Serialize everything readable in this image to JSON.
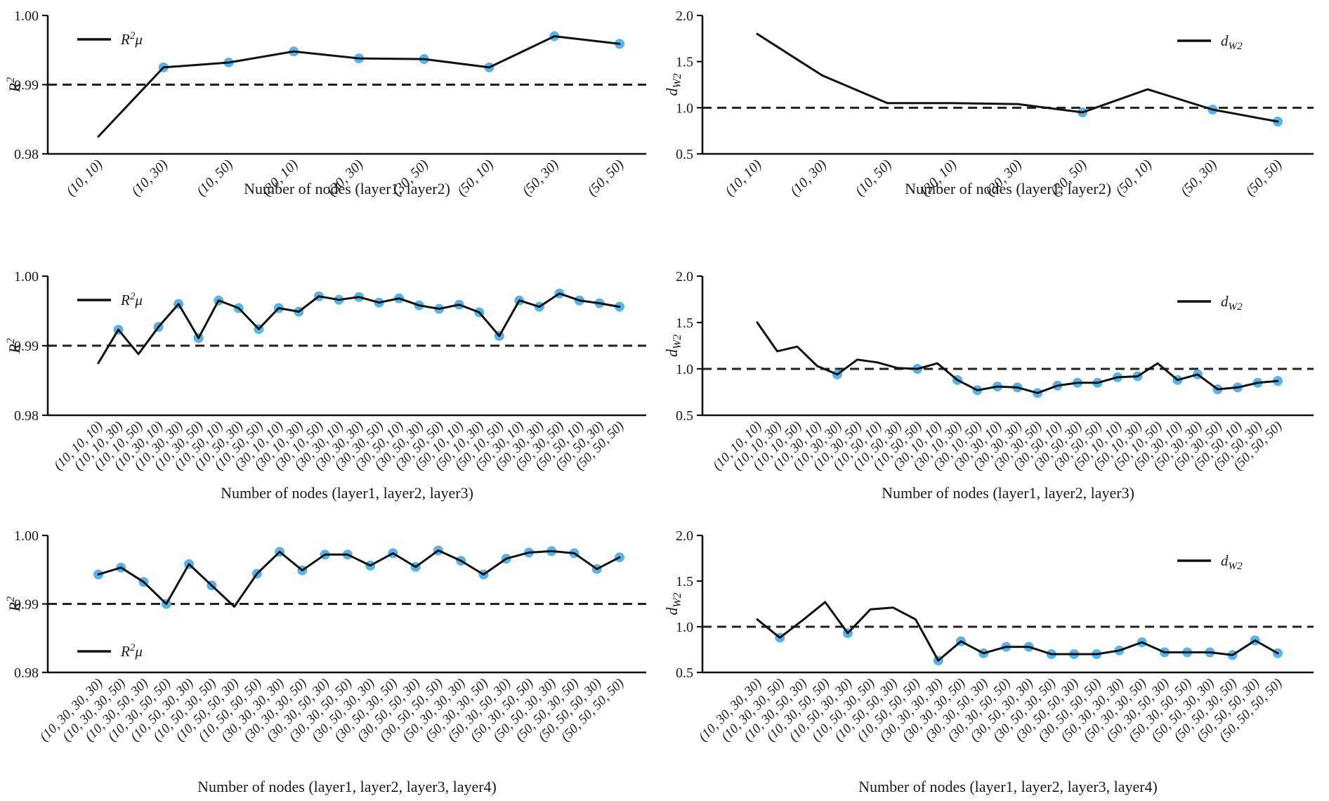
{
  "figure": {
    "background": "#ffffff",
    "line_color": "#111111",
    "dashed_color": "#222222",
    "marker_color": "#56B4E9",
    "text_color": "#1a1a1a"
  },
  "chart_data": [
    {
      "id": "r2-layers2",
      "type": "line",
      "xlabel": "Number of nodes (layer1, layer2)",
      "ylabel_parts": [
        {
          "text": "R",
          "italic": true
        },
        {
          "text": "2",
          "script": "sup",
          "italic": true
        }
      ],
      "legend": {
        "position": "upper-left",
        "label": "R²μ",
        "label_parts": [
          {
            "text": "R",
            "italic": true
          },
          {
            "text": "2",
            "script": "sup",
            "italic": true
          },
          {
            "text": "μ",
            "italic": true
          }
        ]
      },
      "ylim": [
        0.98,
        1.0
      ],
      "y_ticks": [
        {
          "value": 1.0,
          "label": "1.00"
        },
        {
          "value": 0.99,
          "label": "0.99"
        },
        {
          "value": 0.98,
          "label": "0.98"
        }
      ],
      "dashed_y": 0.99,
      "categories": [
        "(10, 10)",
        "(10, 30)",
        "(10, 50)",
        "(30, 10)",
        "(30, 30)",
        "(30, 50)",
        "(50, 10)",
        "(50, 30)",
        "(50, 50)"
      ],
      "values": [
        0.9825,
        0.9925,
        0.9932,
        0.9948,
        0.9938,
        0.9937,
        0.9925,
        0.997,
        0.9959
      ],
      "markers": [
        false,
        true,
        true,
        true,
        true,
        true,
        true,
        true,
        true
      ]
    },
    {
      "id": "dw2-layers2",
      "type": "line",
      "xlabel": "Number of nodes (layer1, layer2)",
      "ylabel_parts": [
        {
          "text": "d",
          "italic": true
        },
        {
          "text": "W2",
          "script": "sub",
          "italic": true
        }
      ],
      "legend": {
        "position": "upper-right",
        "label": "d_W2",
        "label_parts": [
          {
            "text": "d",
            "italic": true
          },
          {
            "text": "W2",
            "script": "sub",
            "italic": true
          }
        ]
      },
      "ylim": [
        0.5,
        2.0
      ],
      "y_ticks": [
        {
          "value": 2.0,
          "label": "2.0"
        },
        {
          "value": 1.5,
          "label": "1.5"
        },
        {
          "value": 1.0,
          "label": "1.0"
        },
        {
          "value": 0.5,
          "label": "0.5"
        }
      ],
      "dashed_y": 1.0,
      "categories": [
        "(10, 10)",
        "(10, 30)",
        "(10, 50)",
        "(30, 10)",
        "(30, 30)",
        "(30, 50)",
        "(50, 10)",
        "(50, 30)",
        "(50, 50)"
      ],
      "values": [
        1.8,
        1.35,
        1.05,
        1.05,
        1.04,
        0.95,
        1.2,
        0.98,
        0.85
      ],
      "markers": [
        false,
        false,
        false,
        false,
        false,
        true,
        false,
        true,
        true
      ]
    },
    {
      "id": "r2-layers3",
      "type": "line",
      "xlabel": "Number of nodes (layer1, layer2, layer3)",
      "ylabel_parts": [
        {
          "text": "R",
          "italic": true
        },
        {
          "text": "2",
          "script": "sup",
          "italic": true
        }
      ],
      "legend": {
        "position": "upper-left",
        "label": "R²μ",
        "label_parts": [
          {
            "text": "R",
            "italic": true
          },
          {
            "text": "2",
            "script": "sup",
            "italic": true
          },
          {
            "text": "μ",
            "italic": true
          }
        ]
      },
      "ylim": [
        0.98,
        1.0
      ],
      "y_ticks": [
        {
          "value": 1.0,
          "label": "1.00"
        },
        {
          "value": 0.99,
          "label": "0.99"
        },
        {
          "value": 0.98,
          "label": "0.98"
        }
      ],
      "dashed_y": 0.99,
      "categories": [
        "(10, 10, 10)",
        "(10, 10, 30)",
        "(10, 10, 50)",
        "(10, 30, 10)",
        "(10, 30, 30)",
        "(10, 30, 50)",
        "(10, 50, 10)",
        "(10, 50, 30)",
        "(10, 50, 50)",
        "(30, 10, 10)",
        "(30, 10, 30)",
        "(30, 10, 50)",
        "(30, 30, 10)",
        "(30, 30, 30)",
        "(30, 30, 50)",
        "(30, 50, 10)",
        "(30, 50, 30)",
        "(30, 50, 50)",
        "(50, 10, 10)",
        "(50, 10, 30)",
        "(50, 10, 50)",
        "(50, 30, 10)",
        "(50, 30, 30)",
        "(50, 30, 50)",
        "(50, 50, 10)",
        "(50, 50, 30)",
        "(50, 50, 50)"
      ],
      "values": [
        0.9875,
        0.9923,
        0.9888,
        0.9927,
        0.996,
        0.9911,
        0.9965,
        0.9954,
        0.9924,
        0.9954,
        0.9949,
        0.9971,
        0.9966,
        0.997,
        0.9962,
        0.9968,
        0.9958,
        0.9953,
        0.9959,
        0.9948,
        0.9914,
        0.9965,
        0.9956,
        0.9975,
        0.9965,
        0.9961,
        0.9956
      ],
      "markers": [
        false,
        true,
        false,
        true,
        true,
        true,
        true,
        true,
        true,
        true,
        true,
        true,
        true,
        true,
        true,
        true,
        true,
        true,
        true,
        true,
        true,
        true,
        true,
        true,
        true,
        true,
        true
      ]
    },
    {
      "id": "dw2-layers3",
      "type": "line",
      "xlabel": "Number of nodes (layer1, layer2, layer3)",
      "ylabel_parts": [
        {
          "text": "d",
          "italic": true
        },
        {
          "text": "W2",
          "script": "sub",
          "italic": true
        }
      ],
      "legend": {
        "position": "upper-right",
        "label": "d_W2",
        "label_parts": [
          {
            "text": "d",
            "italic": true
          },
          {
            "text": "W2",
            "script": "sub",
            "italic": true
          }
        ]
      },
      "ylim": [
        0.5,
        2.0
      ],
      "y_ticks": [
        {
          "value": 2.0,
          "label": "2.0"
        },
        {
          "value": 1.5,
          "label": "1.5"
        },
        {
          "value": 1.0,
          "label": "1.0"
        },
        {
          "value": 0.5,
          "label": "0.5"
        }
      ],
      "dashed_y": 1.0,
      "categories": [
        "(10, 10, 10)",
        "(10, 10, 30)",
        "(10, 10, 50)",
        "(10, 30, 10)",
        "(10, 30, 30)",
        "(10, 30, 50)",
        "(10, 50, 10)",
        "(10, 50, 30)",
        "(10, 50, 50)",
        "(30, 10, 10)",
        "(30, 10, 30)",
        "(30, 10, 50)",
        "(30, 30, 10)",
        "(30, 30, 30)",
        "(30, 30, 50)",
        "(30, 50, 10)",
        "(30, 50, 30)",
        "(30, 50, 50)",
        "(50, 10, 10)",
        "(50, 10, 30)",
        "(50, 10, 50)",
        "(50, 30, 10)",
        "(50, 30, 30)",
        "(50, 30, 50)",
        "(50, 50, 10)",
        "(50, 50, 30)",
        "(50, 50, 50)"
      ],
      "values": [
        1.5,
        1.19,
        1.24,
        1.03,
        0.94,
        1.1,
        1.07,
        1.01,
        1.0,
        1.06,
        0.88,
        0.77,
        0.81,
        0.8,
        0.74,
        0.82,
        0.85,
        0.85,
        0.91,
        0.92,
        1.06,
        0.88,
        0.94,
        0.78,
        0.8,
        0.85,
        0.87
      ],
      "markers": [
        false,
        false,
        false,
        false,
        true,
        false,
        false,
        false,
        true,
        false,
        true,
        true,
        true,
        true,
        true,
        true,
        true,
        true,
        true,
        true,
        false,
        true,
        true,
        true,
        true,
        true,
        true
      ]
    },
    {
      "id": "r2-layers4",
      "type": "line",
      "xlabel": "Number of nodes (layer1, layer2, layer3, layer4)",
      "ylabel_parts": [
        {
          "text": "R",
          "italic": true
        },
        {
          "text": "2",
          "script": "sup",
          "italic": true
        }
      ],
      "legend": {
        "position": "lower-left",
        "label": "R²μ",
        "label_parts": [
          {
            "text": "R",
            "italic": true
          },
          {
            "text": "2",
            "script": "sup",
            "italic": true
          },
          {
            "text": "μ",
            "italic": true
          }
        ]
      },
      "ylim": [
        0.98,
        1.0
      ],
      "y_ticks": [
        {
          "value": 1.0,
          "label": "1.00"
        },
        {
          "value": 0.99,
          "label": "0.99"
        },
        {
          "value": 0.98,
          "label": "0.98"
        }
      ],
      "dashed_y": 0.99,
      "categories": [
        "(10, 30, 30, 30)",
        "(10, 30, 30, 50)",
        "(10, 30, 50, 30)",
        "(10, 30, 50, 50)",
        "(10, 50, 30, 30)",
        "(10, 50, 30, 50)",
        "(10, 50, 50, 30)",
        "(10, 50, 50, 50)",
        "(30, 30, 30, 30)",
        "(30, 30, 30, 50)",
        "(30, 30, 50, 30)",
        "(30, 30, 50, 50)",
        "(30, 50, 30, 30)",
        "(30, 50, 30, 50)",
        "(30, 50, 50, 30)",
        "(30, 50, 50, 50)",
        "(50, 30, 30, 30)",
        "(50, 30, 30, 50)",
        "(50, 30, 50, 30)",
        "(50, 30, 50, 50)",
        "(50, 50, 30, 30)",
        "(50, 50, 30, 50)",
        "(50, 50, 50, 30)",
        "(50, 50, 50, 50)"
      ],
      "values": [
        0.9943,
        0.9953,
        0.9932,
        0.99,
        0.9958,
        0.9927,
        0.9896,
        0.9944,
        0.9976,
        0.9949,
        0.9972,
        0.9972,
        0.9956,
        0.9974,
        0.9954,
        0.9978,
        0.9963,
        0.9943,
        0.9966,
        0.9975,
        0.9977,
        0.9974,
        0.9951,
        0.9968
      ],
      "markers": [
        true,
        true,
        true,
        true,
        true,
        true,
        false,
        true,
        true,
        true,
        true,
        true,
        true,
        true,
        true,
        true,
        true,
        true,
        true,
        true,
        true,
        true,
        true,
        true
      ]
    },
    {
      "id": "dw2-layers4",
      "type": "line",
      "xlabel": "Number of nodes (layer1, layer2, layer3, layer4)",
      "ylabel_parts": [
        {
          "text": "d",
          "italic": true
        },
        {
          "text": "W2",
          "script": "sub",
          "italic": true
        }
      ],
      "legend": {
        "position": "upper-right",
        "label": "d_W2",
        "label_parts": [
          {
            "text": "d",
            "italic": true
          },
          {
            "text": "W2",
            "script": "sub",
            "italic": true
          }
        ]
      },
      "ylim": [
        0.5,
        2.0
      ],
      "y_ticks": [
        {
          "value": 2.0,
          "label": "2.0"
        },
        {
          "value": 1.5,
          "label": "1.5"
        },
        {
          "value": 1.0,
          "label": "1.0"
        },
        {
          "value": 0.5,
          "label": "0.5"
        }
      ],
      "dashed_y": 1.0,
      "categories": [
        "(10, 30, 30, 30)",
        "(10, 30, 30, 50)",
        "(10, 30, 50, 30)",
        "(10, 30, 50, 50)",
        "(10, 50, 30, 30)",
        "(10, 50, 30, 50)",
        "(10, 50, 50, 30)",
        "(10, 50, 50, 50)",
        "(30, 30, 30, 30)",
        "(30, 30, 30, 50)",
        "(30, 30, 50, 30)",
        "(30, 30, 50, 50)",
        "(30, 50, 30, 30)",
        "(30, 50, 30, 50)",
        "(30, 50, 50, 30)",
        "(30, 50, 50, 50)",
        "(50, 30, 30, 30)",
        "(50, 30, 30, 50)",
        "(50, 30, 50, 30)",
        "(50, 30, 50, 50)",
        "(50, 50, 30, 30)",
        "(50, 50, 30, 50)",
        "(50, 50, 50, 30)",
        "(50, 50, 50, 50)"
      ],
      "values": [
        1.08,
        0.88,
        1.07,
        1.27,
        0.93,
        1.19,
        1.21,
        1.08,
        0.63,
        0.84,
        0.71,
        0.78,
        0.78,
        0.7,
        0.7,
        0.7,
        0.74,
        0.83,
        0.72,
        0.72,
        0.72,
        0.69,
        0.85,
        0.71
      ],
      "markers": [
        false,
        true,
        false,
        false,
        true,
        false,
        false,
        false,
        true,
        true,
        true,
        true,
        true,
        true,
        true,
        true,
        true,
        true,
        true,
        true,
        true,
        true,
        true,
        true
      ]
    }
  ]
}
